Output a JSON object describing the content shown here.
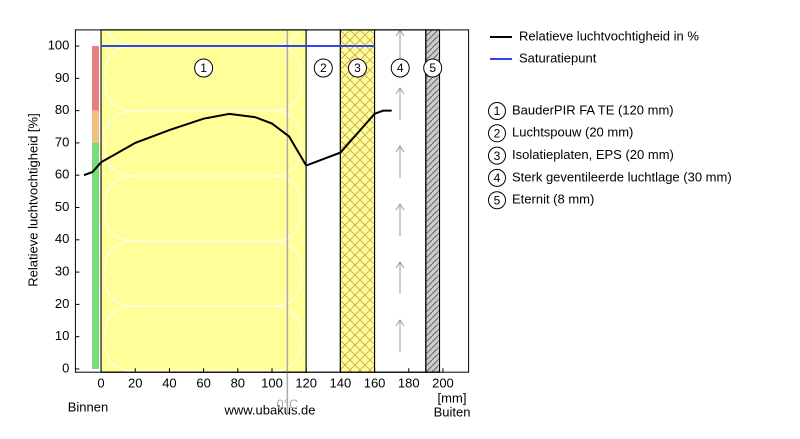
{
  "chart_data": {
    "type": "line",
    "y_label": "Relatieve luchtvochtigheid [%]",
    "x_unit": "[mm]",
    "inside_label": "Binnen",
    "outside_label": "Buiten",
    "watermark": "www.ubakus.de",
    "xlim": [
      -15,
      215
    ],
    "ylim": [
      -1,
      105
    ],
    "xticks": [
      0,
      20,
      40,
      60,
      80,
      100,
      120,
      140,
      160,
      180,
      200
    ],
    "yticks": [
      0,
      10,
      20,
      30,
      40,
      50,
      60,
      70,
      80,
      90,
      100
    ],
    "series": [
      {
        "name": "Relatieve luchtvochtigheid in %",
        "color": "#000000",
        "x": [
          -10,
          -5,
          0,
          10,
          20,
          40,
          60,
          75,
          90,
          100,
          110,
          120,
          130,
          140,
          150,
          160,
          165,
          170
        ],
        "values": [
          60,
          61,
          64,
          67,
          70,
          74,
          77.5,
          79,
          78,
          76,
          72,
          63,
          65,
          67,
          73,
          79,
          80,
          80
        ]
      },
      {
        "name": "Saturatiepunt",
        "color": "#3344ee",
        "x": [
          0,
          160
        ],
        "values": [
          100,
          100
        ]
      }
    ],
    "layers": [
      {
        "number": "1",
        "name": "BauderPIR FA TE (120 mm)",
        "start": 0,
        "end": 120,
        "color": "#ffff99",
        "pattern": "loops"
      },
      {
        "number": "2",
        "name": "Luchtspouw (20 mm)",
        "start": 120,
        "end": 140,
        "color": "#ffffff",
        "pattern": "none"
      },
      {
        "number": "3",
        "name": "Isolatieplaten, EPS (20 mm)",
        "start": 140,
        "end": 160,
        "color": "#ffff99",
        "pattern": "cross"
      },
      {
        "number": "4",
        "name": "Sterk geventileerde luchtlage (30 mm)",
        "start": 160,
        "end": 190,
        "color": "#ffffff",
        "pattern": "arrows"
      },
      {
        "number": "5",
        "name": "Eternit (8 mm)",
        "start": 190,
        "end": 198,
        "color": "#cccccc",
        "pattern": "hatch"
      }
    ],
    "comfort_bar": [
      {
        "from": 0,
        "to": 70,
        "color": "#77dd77"
      },
      {
        "from": 70,
        "to": 80,
        "color": "#f0c080"
      },
      {
        "from": 80,
        "to": 100,
        "color": "#e88080"
      }
    ],
    "frost_line": {
      "x": 109,
      "label": "0°C",
      "color": "#aaaaaa"
    }
  }
}
